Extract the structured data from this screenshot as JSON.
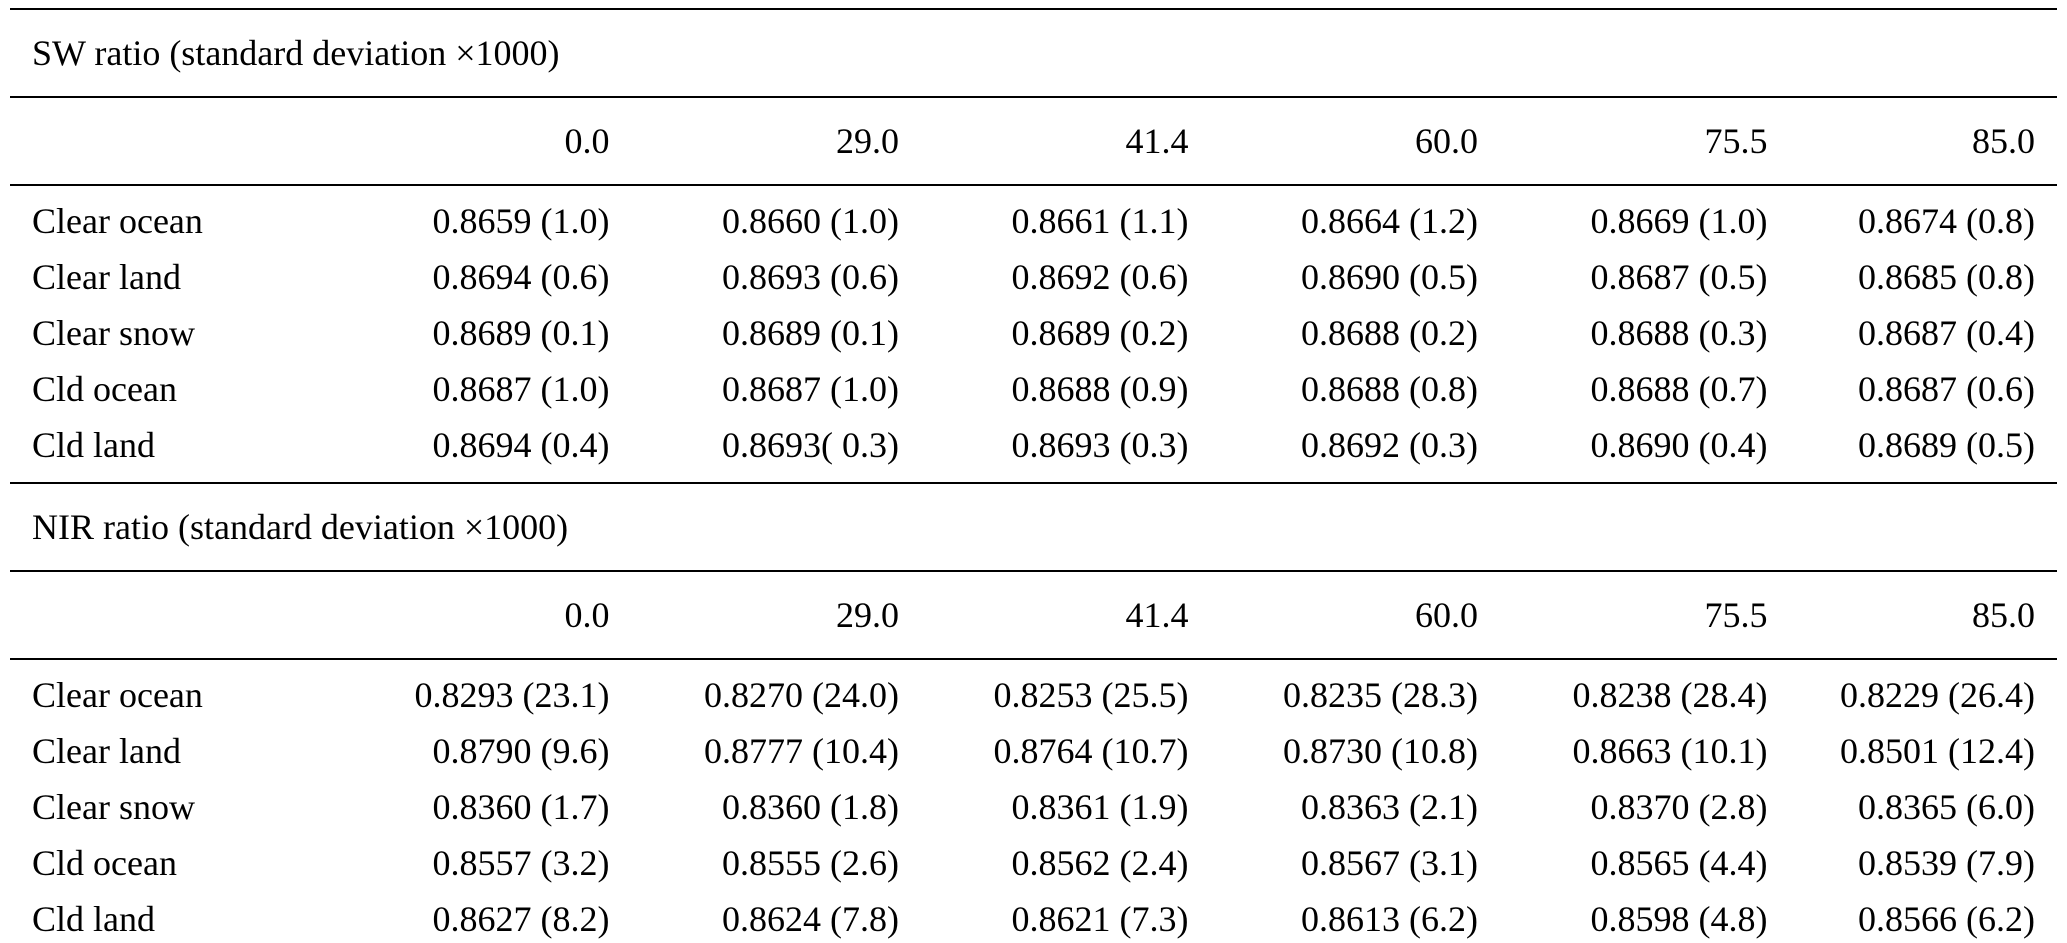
{
  "table": {
    "sections": [
      {
        "title": "SW ratio (standard deviation ×1000)",
        "columns": [
          "0.0",
          "29.0",
          "41.4",
          "60.0",
          "75.5",
          "85.0"
        ],
        "rows": [
          {
            "label": "Clear ocean",
            "values": [
              "0.8659 (1.0)",
              "0.8660 (1.0)",
              "0.8661 (1.1)",
              "0.8664 (1.2)",
              "0.8669 (1.0)",
              "0.8674 (0.8)"
            ]
          },
          {
            "label": "Clear land",
            "values": [
              "0.8694 (0.6)",
              "0.8693 (0.6)",
              "0.8692 (0.6)",
              "0.8690 (0.5)",
              "0.8687 (0.5)",
              "0.8685 (0.8)"
            ]
          },
          {
            "label": "Clear snow",
            "values": [
              "0.8689 (0.1)",
              "0.8689 (0.1)",
              "0.8689 (0.2)",
              "0.8688 (0.2)",
              "0.8688 (0.3)",
              "0.8687 (0.4)"
            ]
          },
          {
            "label": "Cld ocean",
            "values": [
              "0.8687 (1.0)",
              "0.8687 (1.0)",
              "0.8688 (0.9)",
              "0.8688 (0.8)",
              "0.8688 (0.7)",
              "0.8687 (0.6)"
            ]
          },
          {
            "label": "Cld land",
            "values": [
              "0.8694 (0.4)",
              "0.8693( 0.3)",
              "0.8693 (0.3)",
              "0.8692 (0.3)",
              "0.8690 (0.4)",
              "0.8689 (0.5)"
            ]
          }
        ]
      },
      {
        "title": "NIR ratio (standard deviation ×1000)",
        "columns": [
          "0.0",
          "29.0",
          "41.4",
          "60.0",
          "75.5",
          "85.0"
        ],
        "rows": [
          {
            "label": "Clear ocean",
            "values": [
              "0.8293 (23.1)",
              "0.8270 (24.0)",
              "0.8253 (25.5)",
              "0.8235 (28.3)",
              "0.8238 (28.4)",
              "0.8229 (26.4)"
            ]
          },
          {
            "label": "Clear land",
            "values": [
              "0.8790 (9.6)",
              "0.8777 (10.4)",
              "0.8764 (10.7)",
              "0.8730 (10.8)",
              "0.8663 (10.1)",
              "0.8501 (12.4)"
            ]
          },
          {
            "label": "Clear snow",
            "values": [
              "0.8360 (1.7)",
              "0.8360 (1.8)",
              "0.8361 (1.9)",
              "0.8363 (2.1)",
              "0.8370 (2.8)",
              "0.8365 (6.0)"
            ]
          },
          {
            "label": "Cld ocean",
            "values": [
              "0.8557 (3.2)",
              "0.8555 (2.6)",
              "0.8562 (2.4)",
              "0.8567 (3.1)",
              "0.8565 (4.4)",
              "0.8539 (7.9)"
            ]
          },
          {
            "label": "Cld land",
            "values": [
              "0.8627 (8.2)",
              "0.8624 (7.8)",
              "0.8621 (7.3)",
              "0.8613 (6.2)",
              "0.8598 (4.8)",
              "0.8566 (6.2)"
            ]
          }
        ]
      }
    ]
  }
}
